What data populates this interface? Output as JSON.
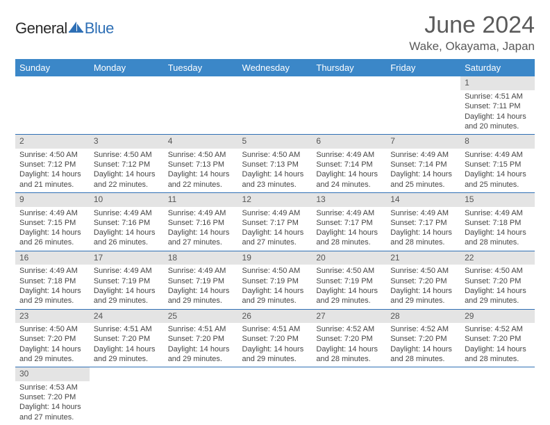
{
  "logo": {
    "text_general": "General",
    "text_blue": "Blue",
    "color_dark": "#2a2a2a",
    "color_blue": "#2e6fb5"
  },
  "title": "June 2024",
  "location": "Wake, Okayama, Japan",
  "colors": {
    "header_bg": "#3b87c8",
    "header_text": "#ffffff",
    "daynum_bg": "#e4e4e4",
    "border": "#2e6fb5"
  },
  "weekdays": [
    "Sunday",
    "Monday",
    "Tuesday",
    "Wednesday",
    "Thursday",
    "Friday",
    "Saturday"
  ],
  "weeks": [
    [
      null,
      null,
      null,
      null,
      null,
      null,
      {
        "n": "1",
        "sunrise": "Sunrise: 4:51 AM",
        "sunset": "Sunset: 7:11 PM",
        "daylight": "Daylight: 14 hours and 20 minutes."
      }
    ],
    [
      {
        "n": "2",
        "sunrise": "Sunrise: 4:50 AM",
        "sunset": "Sunset: 7:12 PM",
        "daylight": "Daylight: 14 hours and 21 minutes."
      },
      {
        "n": "3",
        "sunrise": "Sunrise: 4:50 AM",
        "sunset": "Sunset: 7:12 PM",
        "daylight": "Daylight: 14 hours and 22 minutes."
      },
      {
        "n": "4",
        "sunrise": "Sunrise: 4:50 AM",
        "sunset": "Sunset: 7:13 PM",
        "daylight": "Daylight: 14 hours and 22 minutes."
      },
      {
        "n": "5",
        "sunrise": "Sunrise: 4:50 AM",
        "sunset": "Sunset: 7:13 PM",
        "daylight": "Daylight: 14 hours and 23 minutes."
      },
      {
        "n": "6",
        "sunrise": "Sunrise: 4:49 AM",
        "sunset": "Sunset: 7:14 PM",
        "daylight": "Daylight: 14 hours and 24 minutes."
      },
      {
        "n": "7",
        "sunrise": "Sunrise: 4:49 AM",
        "sunset": "Sunset: 7:14 PM",
        "daylight": "Daylight: 14 hours and 25 minutes."
      },
      {
        "n": "8",
        "sunrise": "Sunrise: 4:49 AM",
        "sunset": "Sunset: 7:15 PM",
        "daylight": "Daylight: 14 hours and 25 minutes."
      }
    ],
    [
      {
        "n": "9",
        "sunrise": "Sunrise: 4:49 AM",
        "sunset": "Sunset: 7:15 PM",
        "daylight": "Daylight: 14 hours and 26 minutes."
      },
      {
        "n": "10",
        "sunrise": "Sunrise: 4:49 AM",
        "sunset": "Sunset: 7:16 PM",
        "daylight": "Daylight: 14 hours and 26 minutes."
      },
      {
        "n": "11",
        "sunrise": "Sunrise: 4:49 AM",
        "sunset": "Sunset: 7:16 PM",
        "daylight": "Daylight: 14 hours and 27 minutes."
      },
      {
        "n": "12",
        "sunrise": "Sunrise: 4:49 AM",
        "sunset": "Sunset: 7:17 PM",
        "daylight": "Daylight: 14 hours and 27 minutes."
      },
      {
        "n": "13",
        "sunrise": "Sunrise: 4:49 AM",
        "sunset": "Sunset: 7:17 PM",
        "daylight": "Daylight: 14 hours and 28 minutes."
      },
      {
        "n": "14",
        "sunrise": "Sunrise: 4:49 AM",
        "sunset": "Sunset: 7:17 PM",
        "daylight": "Daylight: 14 hours and 28 minutes."
      },
      {
        "n": "15",
        "sunrise": "Sunrise: 4:49 AM",
        "sunset": "Sunset: 7:18 PM",
        "daylight": "Daylight: 14 hours and 28 minutes."
      }
    ],
    [
      {
        "n": "16",
        "sunrise": "Sunrise: 4:49 AM",
        "sunset": "Sunset: 7:18 PM",
        "daylight": "Daylight: 14 hours and 29 minutes."
      },
      {
        "n": "17",
        "sunrise": "Sunrise: 4:49 AM",
        "sunset": "Sunset: 7:19 PM",
        "daylight": "Daylight: 14 hours and 29 minutes."
      },
      {
        "n": "18",
        "sunrise": "Sunrise: 4:49 AM",
        "sunset": "Sunset: 7:19 PM",
        "daylight": "Daylight: 14 hours and 29 minutes."
      },
      {
        "n": "19",
        "sunrise": "Sunrise: 4:50 AM",
        "sunset": "Sunset: 7:19 PM",
        "daylight": "Daylight: 14 hours and 29 minutes."
      },
      {
        "n": "20",
        "sunrise": "Sunrise: 4:50 AM",
        "sunset": "Sunset: 7:19 PM",
        "daylight": "Daylight: 14 hours and 29 minutes."
      },
      {
        "n": "21",
        "sunrise": "Sunrise: 4:50 AM",
        "sunset": "Sunset: 7:20 PM",
        "daylight": "Daylight: 14 hours and 29 minutes."
      },
      {
        "n": "22",
        "sunrise": "Sunrise: 4:50 AM",
        "sunset": "Sunset: 7:20 PM",
        "daylight": "Daylight: 14 hours and 29 minutes."
      }
    ],
    [
      {
        "n": "23",
        "sunrise": "Sunrise: 4:50 AM",
        "sunset": "Sunset: 7:20 PM",
        "daylight": "Daylight: 14 hours and 29 minutes."
      },
      {
        "n": "24",
        "sunrise": "Sunrise: 4:51 AM",
        "sunset": "Sunset: 7:20 PM",
        "daylight": "Daylight: 14 hours and 29 minutes."
      },
      {
        "n": "25",
        "sunrise": "Sunrise: 4:51 AM",
        "sunset": "Sunset: 7:20 PM",
        "daylight": "Daylight: 14 hours and 29 minutes."
      },
      {
        "n": "26",
        "sunrise": "Sunrise: 4:51 AM",
        "sunset": "Sunset: 7:20 PM",
        "daylight": "Daylight: 14 hours and 29 minutes."
      },
      {
        "n": "27",
        "sunrise": "Sunrise: 4:52 AM",
        "sunset": "Sunset: 7:20 PM",
        "daylight": "Daylight: 14 hours and 28 minutes."
      },
      {
        "n": "28",
        "sunrise": "Sunrise: 4:52 AM",
        "sunset": "Sunset: 7:20 PM",
        "daylight": "Daylight: 14 hours and 28 minutes."
      },
      {
        "n": "29",
        "sunrise": "Sunrise: 4:52 AM",
        "sunset": "Sunset: 7:20 PM",
        "daylight": "Daylight: 14 hours and 28 minutes."
      }
    ],
    [
      {
        "n": "30",
        "sunrise": "Sunrise: 4:53 AM",
        "sunset": "Sunset: 7:20 PM",
        "daylight": "Daylight: 14 hours and 27 minutes."
      },
      null,
      null,
      null,
      null,
      null,
      null
    ]
  ]
}
